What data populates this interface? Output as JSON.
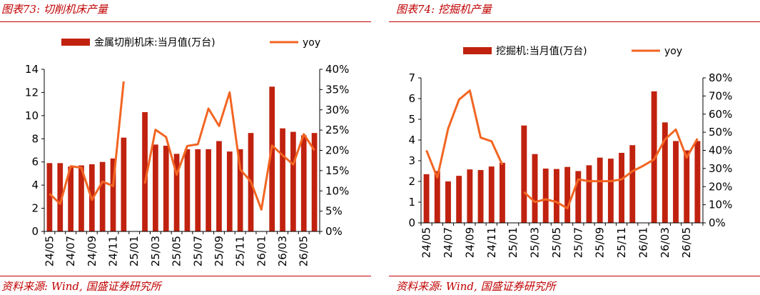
{
  "left": {
    "title": "图表73:  切削机床产量",
    "source": "资料来源:  Wind,  国盛证券研究所"
  },
  "right": {
    "title": "图表74:  挖掘机产量",
    "source": "资料来源:  Wind,  国盛证券研究所"
  },
  "colors": {
    "bar": "#c0220f",
    "line": "#f26522",
    "accent": "#c00000"
  },
  "chart_data": [
    {
      "type": "bar",
      "categories": [
        "24/05",
        "24/06",
        "24/07",
        "24/08",
        "24/09",
        "24/10",
        "24/11",
        "24/12",
        "25/01",
        "25/02",
        "25/03",
        "25/04",
        "25/05",
        "25/06",
        "25/07",
        "25/08",
        "25/09",
        "25/10",
        "25/11",
        "25/12",
        "26/01",
        "26/02",
        "26/03",
        "26/04",
        "26/05",
        "26/06"
      ],
      "tick_labels": [
        "24/05",
        "24/07",
        "24/09",
        "24/11",
        "25/01",
        "25/03",
        "25/05",
        "25/07",
        "25/09",
        "25/11",
        "26/01",
        "26/03",
        "26/05"
      ],
      "series": [
        {
          "name": "金属切削机床:当月值(万台)",
          "type": "bar",
          "axis": "left",
          "values": [
            5.9,
            5.9,
            5.6,
            5.7,
            5.8,
            6.0,
            6.3,
            8.1,
            null,
            10.3,
            7.5,
            7.4,
            6.7,
            7.1,
            7.1,
            7.1,
            7.8,
            6.9,
            7.1,
            8.5,
            null,
            12.5,
            8.9,
            8.6,
            8.3,
            8.5
          ]
        },
        {
          "name": "yoy",
          "type": "line",
          "axis": "right",
          "values": [
            0.093,
            0.068,
            0.161,
            0.157,
            0.078,
            0.123,
            0.112,
            0.37,
            null,
            0.118,
            0.251,
            0.233,
            0.14,
            0.211,
            0.215,
            0.303,
            0.26,
            0.343,
            0.153,
            0.123,
            0.054,
            0.212,
            0.188,
            0.165,
            0.24,
            0.2
          ]
        }
      ],
      "y_left": {
        "min": 0,
        "max": 14,
        "ticks": [
          "0",
          "2",
          "4",
          "6",
          "8",
          "10",
          "12",
          "14"
        ]
      },
      "y_right": {
        "min": 0,
        "max": 0.4,
        "ticks": [
          "0%",
          "5%",
          "10%",
          "15%",
          "20%",
          "25%",
          "30%",
          "35%",
          "40%"
        ]
      },
      "legend": [
        "金属切削机床:当月值(万台)",
        "yoy"
      ],
      "legend_position": "top",
      "grid": false
    },
    {
      "type": "bar",
      "categories": [
        "24/05",
        "24/06",
        "24/07",
        "24/08",
        "24/09",
        "24/10",
        "24/11",
        "24/12",
        "25/01",
        "25/02",
        "25/03",
        "25/04",
        "25/05",
        "25/06",
        "25/07",
        "25/08",
        "25/09",
        "25/10",
        "25/11",
        "25/12",
        "26/01",
        "26/02",
        "26/03",
        "26/04",
        "26/05",
        "26/06"
      ],
      "tick_labels": [
        "24/05",
        "24/07",
        "24/09",
        "24/11",
        "25/01",
        "25/03",
        "25/05",
        "25/07",
        "25/09",
        "25/11",
        "26/01",
        "26/03",
        "26/05"
      ],
      "series": [
        {
          "name": "挖掘机:当月值(万台)",
          "type": "bar",
          "axis": "left",
          "values": [
            2.35,
            2.5,
            2.0,
            2.27,
            2.58,
            2.55,
            2.72,
            2.9,
            null,
            4.7,
            3.32,
            2.62,
            2.6,
            2.7,
            2.5,
            2.78,
            3.15,
            3.1,
            3.38,
            3.75,
            null,
            6.35,
            4.85,
            3.95,
            3.5,
            3.95
          ]
        },
        {
          "name": "yoy",
          "type": "line",
          "axis": "right",
          "values": [
            0.4,
            0.25,
            0.52,
            0.68,
            0.73,
            0.47,
            0.45,
            0.32,
            null,
            0.17,
            0.115,
            0.13,
            0.115,
            0.08,
            0.24,
            0.23,
            0.23,
            0.23,
            0.24,
            0.285,
            0.315,
            0.35,
            0.46,
            0.515,
            0.36,
            0.465
          ]
        }
      ],
      "y_left": {
        "min": 0,
        "max": 7,
        "ticks": [
          "0",
          "1",
          "2",
          "3",
          "4",
          "5",
          "6",
          "7"
        ]
      },
      "y_right": {
        "min": 0,
        "max": 0.8,
        "ticks": [
          "0%",
          "10%",
          "20%",
          "30%",
          "40%",
          "50%",
          "60%",
          "70%",
          "80%"
        ]
      },
      "legend": [
        "挖掘机:当月值(万台)",
        "yoy"
      ],
      "legend_position": "top",
      "grid": false
    }
  ]
}
